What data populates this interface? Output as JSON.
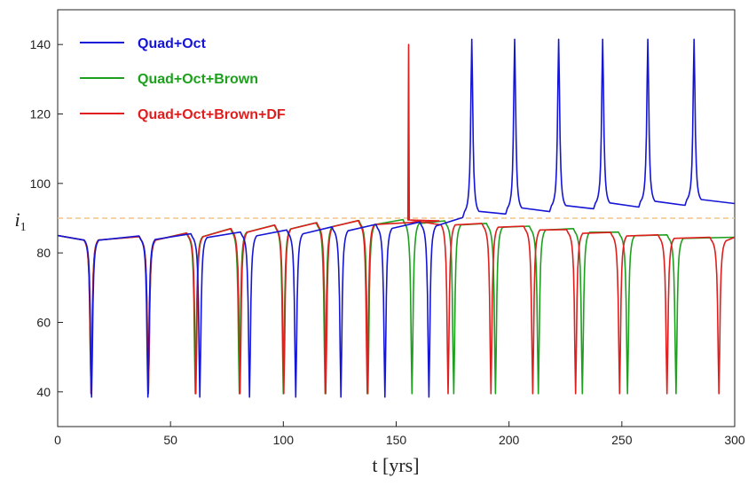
{
  "chart_data": {
    "type": "line",
    "title": "",
    "xlabel": "t [yrs]",
    "ylabel": "i",
    "ylabel_sub": "1",
    "xlim": [
      0,
      300
    ],
    "ylim": [
      30,
      150
    ],
    "xticks": [
      0,
      50,
      100,
      150,
      200,
      250,
      300
    ],
    "yticks": [
      40,
      60,
      80,
      100,
      120,
      140
    ],
    "xtick_labels": [
      "0",
      "50",
      "100",
      "150",
      "200",
      "250",
      "300"
    ],
    "ytick_labels": [
      "40",
      "60",
      "80",
      "100",
      "120",
      "140"
    ],
    "reference_line": {
      "y": 90,
      "style": "dashed",
      "color": "#f5c48a"
    },
    "legend_position": "top-left",
    "series": [
      {
        "name": "Quad+Oct",
        "color": "#1515d6",
        "start": 85,
        "dip_min": 38.5,
        "dips": [
          [
            15,
            85
          ],
          [
            40,
            85.2
          ],
          [
            63,
            85.8
          ],
          [
            85,
            86.3
          ],
          [
            105.5,
            86.9
          ],
          [
            125.5,
            87.8
          ],
          [
            145,
            88.5
          ],
          [
            164.5,
            89.2
          ]
        ],
        "flip_time": 183.5,
        "flip_start": 90.5,
        "peak_max": 141.5,
        "peaks": [
          [
            183.5,
            90.5
          ],
          [
            202.5,
            91.5
          ],
          [
            222,
            92.2
          ],
          [
            241.5,
            93
          ],
          [
            261.5,
            93.5
          ],
          [
            282,
            94
          ]
        ],
        "end": 94.2
      },
      {
        "name": "Quad+Oct+Brown",
        "color": "#1ea01e",
        "start": 85,
        "dip_min": 39.5,
        "dips": [
          [
            14.8,
            85
          ],
          [
            40.2,
            85
          ],
          [
            61,
            86
          ],
          [
            80.5,
            87.3
          ],
          [
            100,
            88.3
          ],
          [
            118.5,
            89
          ],
          [
            137.5,
            89.6
          ],
          [
            157,
            89.9
          ],
          [
            175.5,
            89.5
          ],
          [
            194,
            88.8
          ],
          [
            213,
            88
          ],
          [
            232.5,
            87.3
          ],
          [
            252.5,
            86.3
          ],
          [
            274,
            85.5
          ]
        ],
        "end": 84.5
      },
      {
        "name": "Quad+Oct+Brown+DF",
        "color": "#e01e1e",
        "start": 85,
        "dip_min": 39.5,
        "dips": [
          [
            14.8,
            85
          ],
          [
            40.2,
            85
          ],
          [
            61.2,
            86
          ],
          [
            80.8,
            87.3
          ],
          [
            100.2,
            88.3
          ],
          [
            118.8,
            89
          ],
          [
            137.2,
            89.6
          ],
          [
            173,
            89.5
          ],
          [
            192,
            88.8
          ],
          [
            210.5,
            88
          ],
          [
            229.5,
            87
          ],
          [
            249,
            86.2
          ],
          [
            270,
            85.5
          ],
          [
            293,
            84.8
          ]
        ],
        "spike": {
          "t": 155.5,
          "max": 140
        },
        "end": 84.5
      }
    ]
  }
}
